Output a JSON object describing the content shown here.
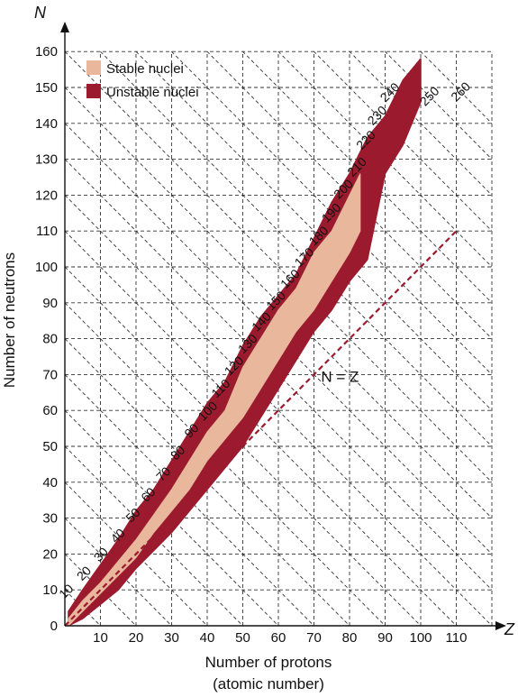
{
  "chart_data": {
    "type": "scatter",
    "title": "",
    "xlabel": "Number of protons",
    "xlabel_sub": "(atomic number)",
    "ylabel": "Number of neutrons",
    "x_axis_letter": "Z",
    "y_axis_letter": "N",
    "xlim": [
      0,
      120
    ],
    "ylim": [
      0,
      160
    ],
    "x_ticks": [
      10,
      20,
      30,
      40,
      50,
      60,
      70,
      80,
      90,
      100,
      110
    ],
    "y_ticks": [
      0,
      10,
      20,
      30,
      40,
      50,
      60,
      70,
      80,
      90,
      100,
      110,
      120,
      130,
      140,
      150,
      160
    ],
    "grid": true,
    "legend_position": "top-left",
    "legend": [
      {
        "label": "Stable nuclei",
        "color": "#e8b79c"
      },
      {
        "label": "Unstable nuclei",
        "color": "#9c1a2e"
      }
    ],
    "isobar_labels": [
      10,
      20,
      30,
      40,
      50,
      60,
      70,
      80,
      90,
      100,
      110,
      120,
      130,
      140,
      150,
      160,
      170,
      180,
      190,
      200,
      210,
      220,
      230,
      240,
      250,
      260
    ],
    "reference_line": {
      "label": "N = Z",
      "x": [
        0,
        110
      ],
      "y": [
        0,
        110
      ]
    },
    "stable_band": [
      {
        "z": 1,
        "n_min": 0,
        "n_max": 2
      },
      {
        "z": 5,
        "n_min": 4,
        "n_max": 7
      },
      {
        "z": 10,
        "n_min": 9,
        "n_max": 12
      },
      {
        "z": 15,
        "n_min": 14,
        "n_max": 18
      },
      {
        "z": 20,
        "n_min": 19,
        "n_max": 24
      },
      {
        "z": 25,
        "n_min": 26,
        "n_max": 31
      },
      {
        "z": 30,
        "n_min": 32,
        "n_max": 38
      },
      {
        "z": 35,
        "n_min": 38,
        "n_max": 46
      },
      {
        "z": 40,
        "n_min": 46,
        "n_max": 54
      },
      {
        "z": 45,
        "n_min": 52,
        "n_max": 60
      },
      {
        "z": 50,
        "n_min": 58,
        "n_max": 72
      },
      {
        "z": 55,
        "n_min": 66,
        "n_max": 80
      },
      {
        "z": 60,
        "n_min": 74,
        "n_max": 88
      },
      {
        "z": 65,
        "n_min": 82,
        "n_max": 94
      },
      {
        "z": 70,
        "n_min": 88,
        "n_max": 104
      },
      {
        "z": 75,
        "n_min": 96,
        "n_max": 110
      },
      {
        "z": 80,
        "n_min": 104,
        "n_max": 120
      },
      {
        "z": 83,
        "n_min": 110,
        "n_max": 126
      }
    ],
    "unstable_band": [
      {
        "z": 1,
        "n_min": 0,
        "n_max": 4
      },
      {
        "z": 5,
        "n_min": 2,
        "n_max": 10
      },
      {
        "z": 10,
        "n_min": 6,
        "n_max": 17
      },
      {
        "z": 15,
        "n_min": 10,
        "n_max": 24
      },
      {
        "z": 20,
        "n_min": 16,
        "n_max": 32
      },
      {
        "z": 25,
        "n_min": 21,
        "n_max": 38
      },
      {
        "z": 30,
        "n_min": 26,
        "n_max": 46
      },
      {
        "z": 35,
        "n_min": 32,
        "n_max": 54
      },
      {
        "z": 40,
        "n_min": 38,
        "n_max": 62
      },
      {
        "z": 45,
        "n_min": 44,
        "n_max": 68
      },
      {
        "z": 50,
        "n_min": 50,
        "n_max": 78
      },
      {
        "z": 55,
        "n_min": 58,
        "n_max": 86
      },
      {
        "z": 60,
        "n_min": 66,
        "n_max": 92
      },
      {
        "z": 65,
        "n_min": 74,
        "n_max": 98
      },
      {
        "z": 70,
        "n_min": 82,
        "n_max": 108
      },
      {
        "z": 75,
        "n_min": 88,
        "n_max": 118
      },
      {
        "z": 80,
        "n_min": 96,
        "n_max": 126
      },
      {
        "z": 85,
        "n_min": 102,
        "n_max": 136
      },
      {
        "z": 90,
        "n_min": 126,
        "n_max": 142
      },
      {
        "z": 95,
        "n_min": 134,
        "n_max": 152
      },
      {
        "z": 100,
        "n_min": 146,
        "n_max": 158
      }
    ]
  }
}
